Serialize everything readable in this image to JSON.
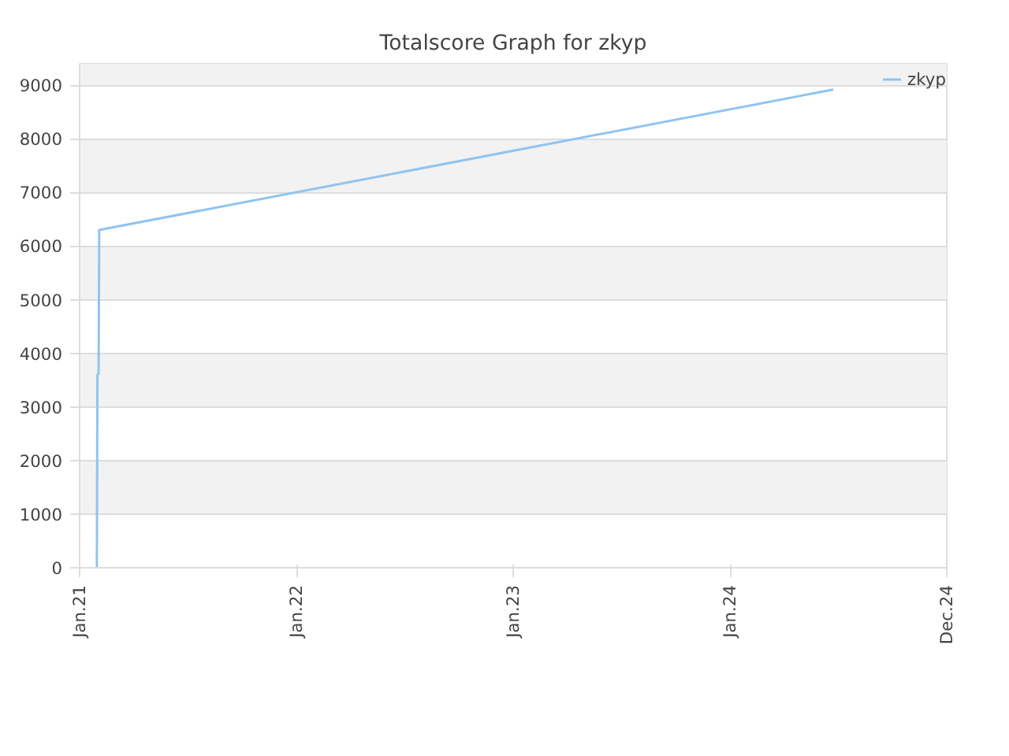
{
  "chart_data": {
    "type": "line",
    "title": "Totalscore Graph for zkyp",
    "x": [
      "2021-01-30",
      "2021-01-31",
      "2021-02-02",
      "2021-02-03",
      "2024-06-23"
    ],
    "series": [
      {
        "name": "zkyp",
        "color": "#90c4f0",
        "values": [
          0,
          3600,
          3620,
          6300,
          8920
        ]
      }
    ],
    "xlim": [
      "2021-01-01",
      "2024-12-31"
    ],
    "xticks": [
      {
        "value": "2021-01-01",
        "label": "Jan.21"
      },
      {
        "value": "2022-01-01",
        "label": "Jan.22"
      },
      {
        "value": "2023-01-01",
        "label": "Jan.23"
      },
      {
        "value": "2024-01-01",
        "label": "Jan.24"
      },
      {
        "value": "2024-12-31",
        "label": "Dec.24"
      }
    ],
    "ylim": [
      0,
      9400
    ],
    "yticks": [
      0,
      1000,
      2000,
      3000,
      4000,
      5000,
      6000,
      7000,
      8000,
      9000
    ],
    "grid": "y",
    "legend": "top right",
    "marker": "none",
    "line_style": "solid"
  }
}
